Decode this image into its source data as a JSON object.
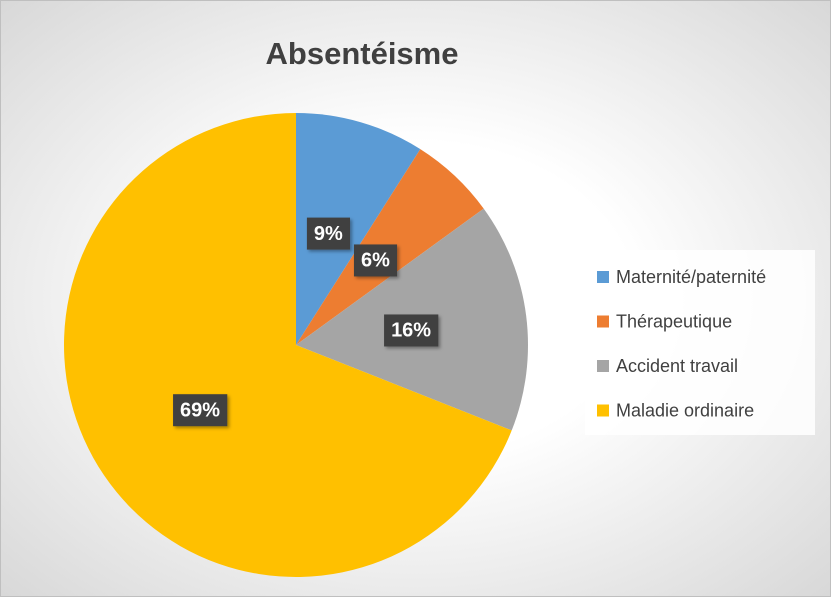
{
  "chart_data": {
    "type": "pie",
    "title": "Absentéisme",
    "categories": [
      "Maternité/paternité",
      "Thérapeutique",
      "Accident travail",
      "Maladie ordinaire"
    ],
    "values": [
      9,
      6,
      16,
      69
    ],
    "value_labels": [
      "9%",
      "6%",
      "16%",
      "69%"
    ],
    "colors": [
      "#5b9bd5",
      "#ed7d31",
      "#a5a5a5",
      "#ffc000"
    ],
    "legend": "right"
  }
}
